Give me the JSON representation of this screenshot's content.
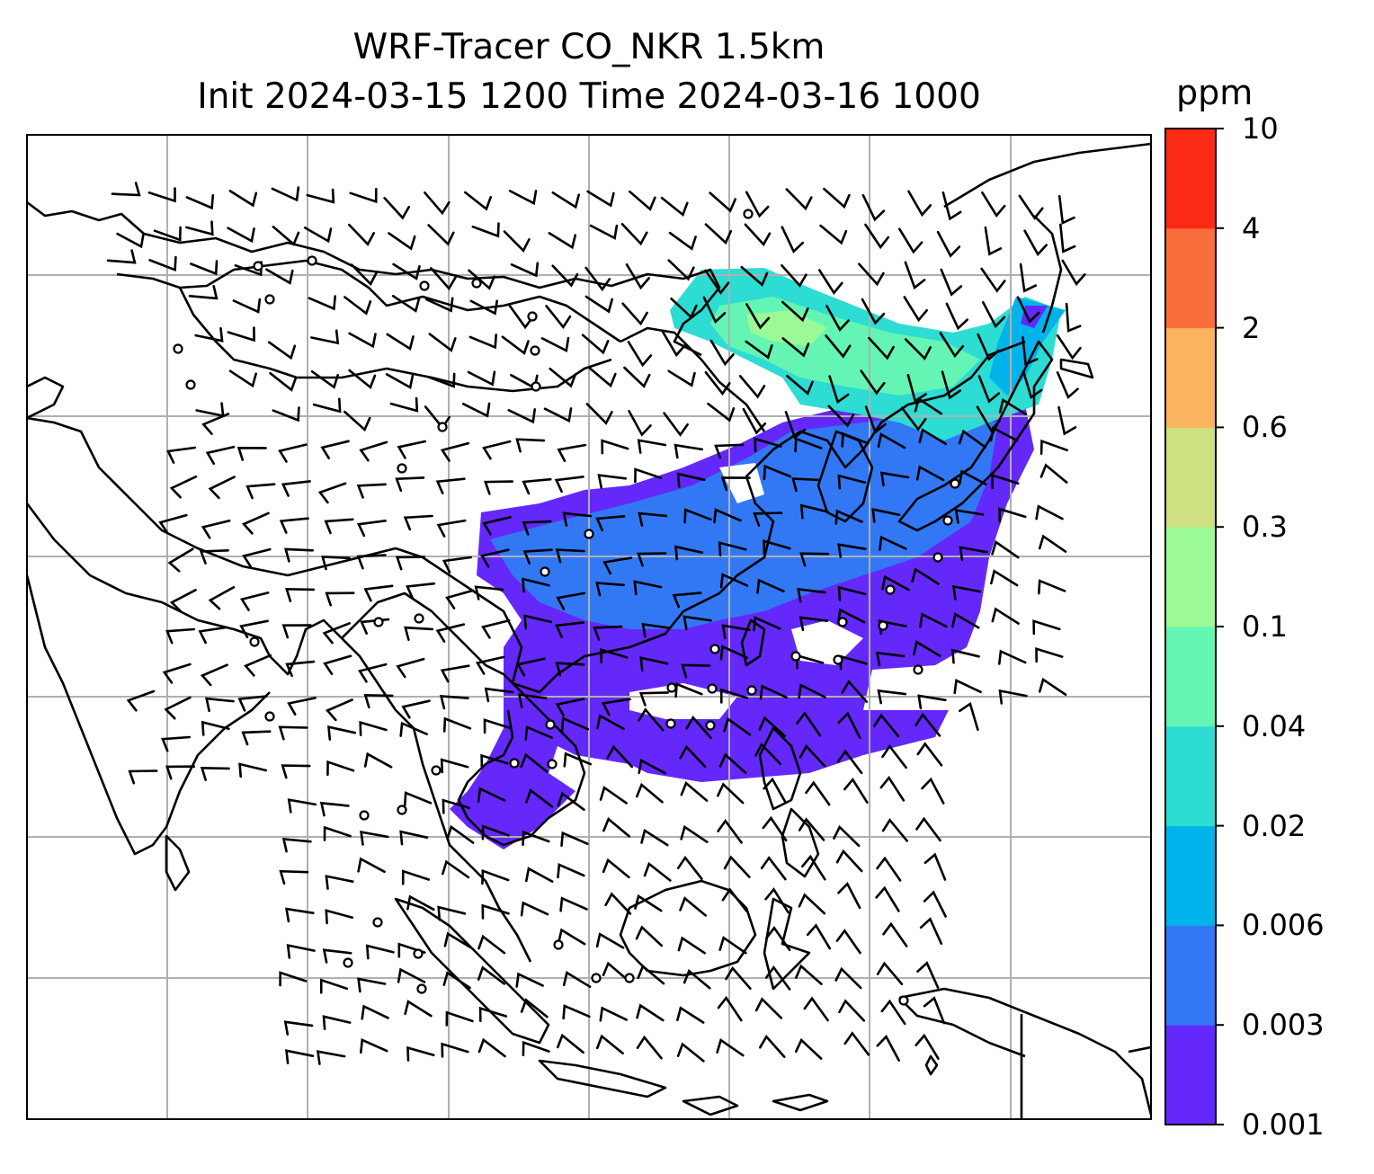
{
  "title": {
    "line1": "WRF-Tracer CO_NKR 1.5km",
    "line2": "Init 2024-03-15 1200 Time 2024-03-16 1000"
  },
  "colorbar": {
    "unit": "ppm",
    "levels": [
      "0.001",
      "0.003",
      "0.006",
      "0.02",
      "0.04",
      "0.1",
      "0.3",
      "0.6",
      "2",
      "4",
      "10"
    ],
    "colors": [
      "#6428fa",
      "#3278f5",
      "#00b4eb",
      "#2ddcd2",
      "#64f5b4",
      "#9bfa96",
      "#cde182",
      "#fab45f",
      "#fa6e3c",
      "#fa2a14"
    ]
  },
  "map": {
    "gridlines": true,
    "overlay": "wind-barbs",
    "coastline_color": "#000000",
    "grid_color": "#b0b0b0"
  }
}
